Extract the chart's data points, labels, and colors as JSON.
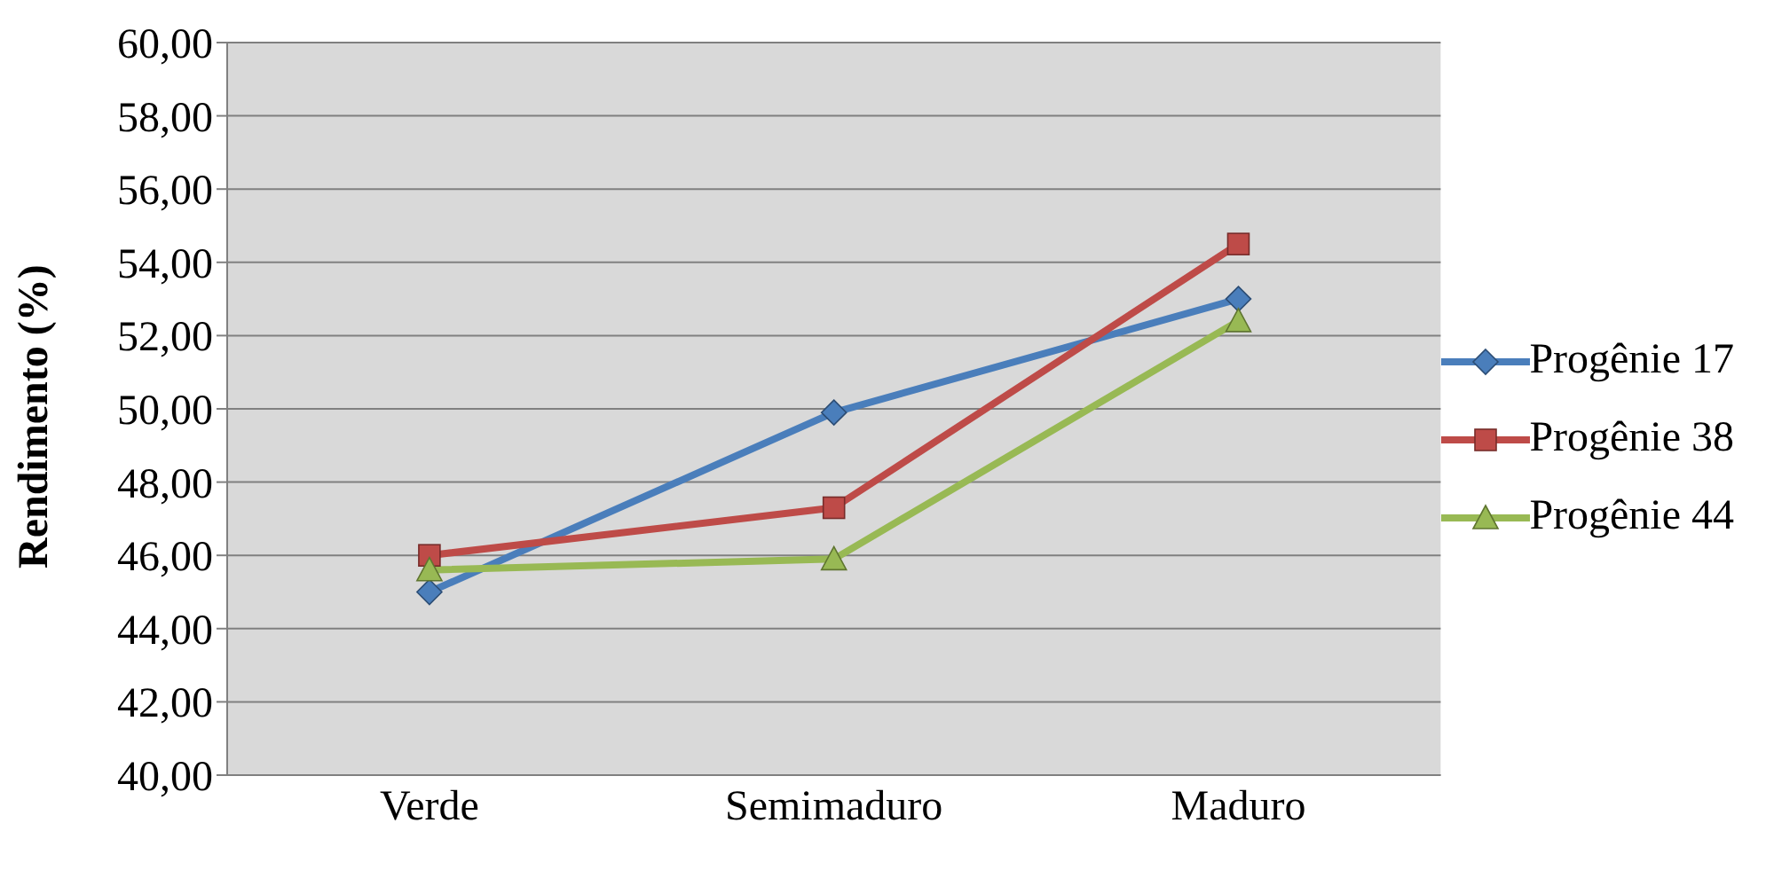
{
  "chart_data": {
    "type": "line",
    "ylabel": "Rendimento (%)",
    "categories": [
      "Verde",
      "Semimaduro",
      "Maduro"
    ],
    "series": [
      {
        "name": "Progênie 17",
        "color": "#4a7ebb",
        "marker": "diamond",
        "values": [
          45.0,
          49.9,
          53.0
        ]
      },
      {
        "name": "Progênie 38",
        "color": "#be4b48",
        "marker": "square",
        "values": [
          46.0,
          47.3,
          54.5
        ]
      },
      {
        "name": "Progênie 44",
        "color": "#98b954",
        "marker": "triangle",
        "values": [
          45.6,
          45.9,
          52.4
        ]
      }
    ],
    "ylim": [
      40,
      60
    ],
    "yticks": [
      {
        "value": 40,
        "label": "40,00"
      },
      {
        "value": 42,
        "label": "42,00"
      },
      {
        "value": 44,
        "label": "44,00"
      },
      {
        "value": 46,
        "label": "46,00"
      },
      {
        "value": 48,
        "label": "48,00"
      },
      {
        "value": 50,
        "label": "50,00"
      },
      {
        "value": 52,
        "label": "52,00"
      },
      {
        "value": 54,
        "label": "54,00"
      },
      {
        "value": 56,
        "label": "56,00"
      },
      {
        "value": 58,
        "label": "58,00"
      },
      {
        "value": 60,
        "label": "60,00"
      }
    ],
    "grid": "y",
    "legend": "right",
    "line_style": "solid"
  }
}
